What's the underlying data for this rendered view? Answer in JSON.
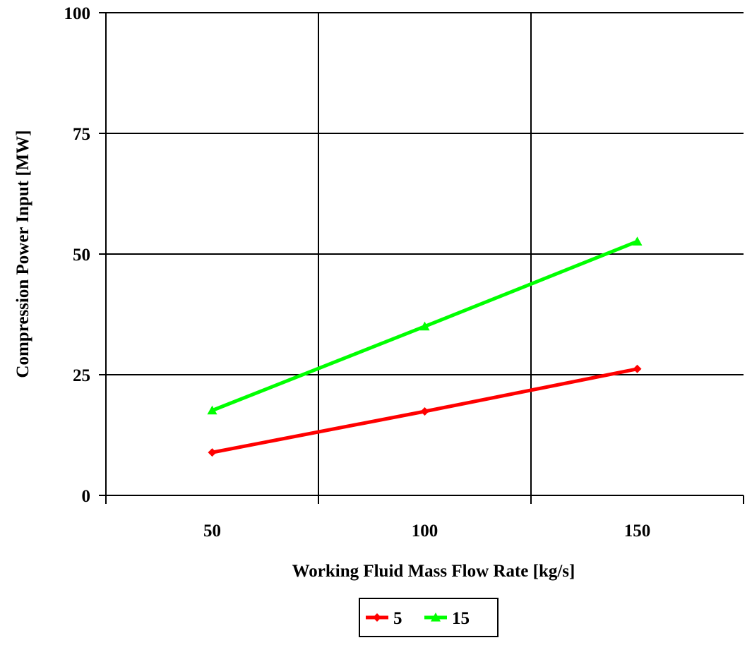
{
  "chart_data": {
    "type": "line",
    "title": "",
    "xlabel": "Working Fluid Mass Flow Rate [kg/s]",
    "ylabel": "Compression Power Input [MW]",
    "x": [
      50,
      100,
      150
    ],
    "xlim": [
      25,
      175
    ],
    "ylim": [
      0,
      100
    ],
    "xticks": [
      50,
      100,
      150
    ],
    "yticks": [
      0,
      25,
      50,
      75,
      100
    ],
    "grid": true,
    "legend_position": "bottom-center",
    "series": [
      {
        "name": "5",
        "values": [
          8.9,
          17.4,
          26.2
        ],
        "color": "#ff0000",
        "marker": "diamond"
      },
      {
        "name": "15",
        "values": [
          17.6,
          35.0,
          52.6
        ],
        "color": "#00ff00",
        "marker": "triangle"
      }
    ]
  }
}
